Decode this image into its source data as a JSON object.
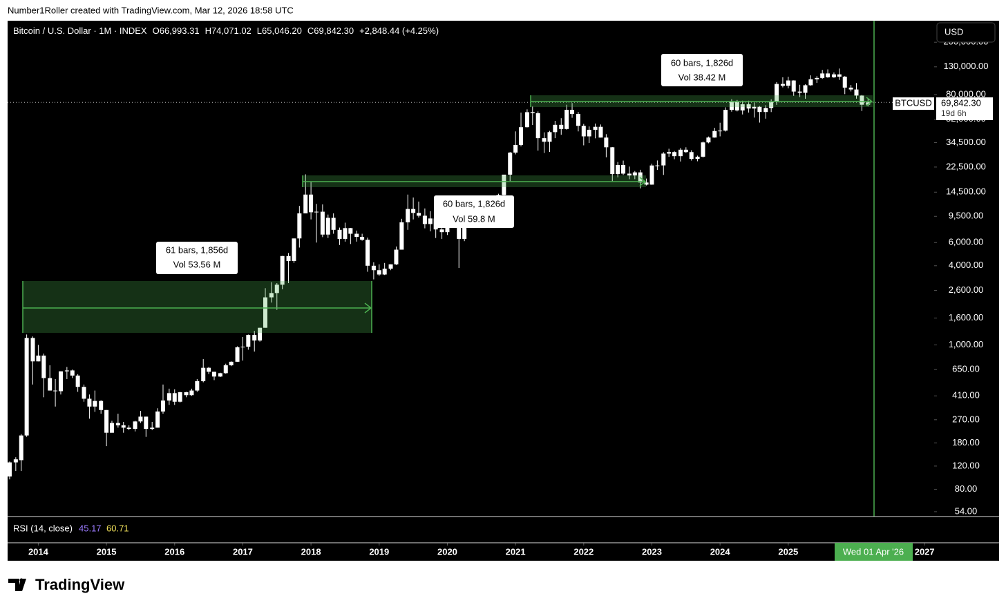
{
  "header": "Number1Roller created with TradingView.com, Mar 12, 2026 18:58 UTC",
  "legend": {
    "symbol": "Bitcoin / U.S. Dollar · 1M · INDEX",
    "open": "O66,993.31",
    "high": "H74,071.02",
    "low": "L65,046.20",
    "close": "C69,842.30",
    "change": "+2,848.44 (+4.25%)"
  },
  "currency": "USD",
  "price_tag": {
    "symbol": "BTCUSD",
    "price": "69,842.30",
    "countdown": "19d 6h"
  },
  "measures": [
    {
      "bars": "61 bars, 1,856d",
      "vol": "Vol 53.56 M"
    },
    {
      "bars": "60 bars, 1,826d",
      "vol": "Vol 59.8 M"
    },
    {
      "bars": "60 bars, 1,826d",
      "vol": "Vol 38.42 M"
    }
  ],
  "rsi": {
    "title": "RSI (14, close)",
    "value1": "45.17",
    "value2": "60.71"
  },
  "crosshair_date": "Wed 01 Apr '26",
  "footer": "TradingView",
  "chart_data": {
    "type": "candlestick",
    "log_scale": true,
    "up_color": "#ffffff",
    "down_color": "#ffffff",
    "xlim": [
      2013.55,
      2027.14
    ],
    "xticks": [
      2014,
      2015,
      2016,
      2017,
      2018,
      2019,
      2020,
      2021,
      2022,
      2023,
      2024,
      2025,
      2027
    ],
    "ylim": [
      49.6,
      291500
    ],
    "yticks": [
      {
        "value": 54,
        "label": "54.00"
      },
      {
        "value": 80,
        "label": "80.00"
      },
      {
        "value": 120,
        "label": "120.00"
      },
      {
        "value": 180,
        "label": "180.00"
      },
      {
        "value": 270,
        "label": "270.00"
      },
      {
        "value": 410,
        "label": "410.00"
      },
      {
        "value": 650,
        "label": "650.00"
      },
      {
        "value": 1000,
        "label": "1,000.00"
      },
      {
        "value": 1600,
        "label": "1,600.00"
      },
      {
        "value": 2600,
        "label": "2,600.00"
      },
      {
        "value": 4000,
        "label": "4,000.00"
      },
      {
        "value": 6000,
        "label": "6,000.00"
      },
      {
        "value": 9500,
        "label": "9,500.00"
      },
      {
        "value": 14500,
        "label": "14,500.00"
      },
      {
        "value": 22500,
        "label": "22,500.00"
      },
      {
        "value": 34500,
        "label": "34,500.00"
      },
      {
        "value": 52000,
        "label": "52,000.00"
      },
      {
        "value": 80000,
        "label": "80,000.00"
      },
      {
        "value": 130000,
        "label": "130,000.00"
      },
      {
        "value": 200000,
        "label": "200,000.00"
      }
    ],
    "x": [
      2013.58,
      2013.67,
      2013.75,
      2013.83,
      2013.92,
      2014,
      2014.08,
      2014.17,
      2014.25,
      2014.33,
      2014.42,
      2014.5,
      2014.58,
      2014.67,
      2014.75,
      2014.83,
      2014.92,
      2015,
      2015.08,
      2015.17,
      2015.25,
      2015.33,
      2015.42,
      2015.5,
      2015.58,
      2015.67,
      2015.75,
      2015.83,
      2015.92,
      2016,
      2016.08,
      2016.17,
      2016.25,
      2016.33,
      2016.42,
      2016.5,
      2016.58,
      2016.67,
      2016.75,
      2016.83,
      2016.92,
      2017,
      2017.08,
      2017.17,
      2017.25,
      2017.33,
      2017.42,
      2017.5,
      2017.58,
      2017.67,
      2017.75,
      2017.83,
      2017.92,
      2018,
      2018.08,
      2018.17,
      2018.25,
      2018.33,
      2018.42,
      2018.5,
      2018.58,
      2018.67,
      2018.75,
      2018.83,
      2018.92,
      2019,
      2019.08,
      2019.17,
      2019.25,
      2019.33,
      2019.42,
      2019.5,
      2019.58,
      2019.67,
      2019.75,
      2019.83,
      2019.92,
      2020,
      2020.08,
      2020.17,
      2020.25,
      2020.33,
      2020.42,
      2020.5,
      2020.58,
      2020.67,
      2020.75,
      2020.83,
      2020.92,
      2021,
      2021.08,
      2021.17,
      2021.25,
      2021.33,
      2021.42,
      2021.5,
      2021.58,
      2021.67,
      2021.75,
      2021.83,
      2021.92,
      2022,
      2022.08,
      2022.17,
      2022.25,
      2022.33,
      2022.42,
      2022.5,
      2022.58,
      2022.67,
      2022.75,
      2022.83,
      2022.92,
      2023,
      2023.08,
      2023.17,
      2023.25,
      2023.33,
      2023.42,
      2023.5,
      2023.58,
      2023.67,
      2023.75,
      2023.83,
      2023.92,
      2024,
      2024.08,
      2024.17,
      2024.25,
      2024.33,
      2024.42,
      2024.5,
      2024.58,
      2024.67,
      2024.75,
      2024.83,
      2024.92,
      2025,
      2025.08,
      2025.17,
      2025.25,
      2025.33,
      2025.42,
      2025.5,
      2025.58,
      2025.67,
      2025.75,
      2025.83,
      2025.92,
      2026,
      2026.08,
      2026.17
    ],
    "ohlc": [
      [
        100,
        130,
        95,
        128
      ],
      [
        128,
        140,
        110,
        135
      ],
      [
        133,
        210,
        110,
        205
      ],
      [
        205,
        1200,
        200,
        1130
      ],
      [
        1130,
        1160,
        500,
        750
      ],
      [
        750,
        1000,
        750,
        830
      ],
      [
        830,
        860,
        400,
        560
      ],
      [
        560,
        700,
        450,
        450
      ],
      [
        450,
        550,
        340,
        445
      ],
      [
        445,
        630,
        420,
        630
      ],
      [
        630,
        680,
        550,
        640
      ],
      [
        640,
        650,
        560,
        585
      ],
      [
        585,
        600,
        440,
        480
      ],
      [
        480,
        500,
        370,
        390
      ],
      [
        390,
        420,
        275,
        340
      ],
      [
        340,
        450,
        310,
        375
      ],
      [
        375,
        380,
        300,
        320
      ],
      [
        320,
        320,
        170,
        215
      ],
      [
        215,
        265,
        215,
        255
      ],
      [
        255,
        300,
        235,
        245
      ],
      [
        245,
        260,
        215,
        235
      ],
      [
        235,
        245,
        225,
        230
      ],
      [
        230,
        265,
        220,
        262
      ],
      [
        262,
        315,
        255,
        285
      ],
      [
        285,
        285,
        200,
        230
      ],
      [
        230,
        260,
        225,
        235
      ],
      [
        235,
        330,
        235,
        312
      ],
      [
        312,
        500,
        300,
        378
      ],
      [
        378,
        465,
        350,
        430
      ],
      [
        430,
        460,
        350,
        370
      ],
      [
        370,
        440,
        365,
        437
      ],
      [
        437,
        440,
        400,
        415
      ],
      [
        415,
        465,
        410,
        450
      ],
      [
        450,
        550,
        440,
        530
      ],
      [
        530,
        780,
        520,
        670
      ],
      [
        670,
        680,
        600,
        625
      ],
      [
        625,
        625,
        540,
        575
      ],
      [
        575,
        615,
        570,
        610
      ],
      [
        610,
        720,
        605,
        700
      ],
      [
        700,
        750,
        690,
        745
      ],
      [
        745,
        975,
        745,
        960
      ],
      [
        960,
        1150,
        760,
        970
      ],
      [
        970,
        1200,
        920,
        1190
      ],
      [
        1190,
        1280,
        890,
        1080
      ],
      [
        1080,
        1350,
        1060,
        1350
      ],
      [
        1350,
        2700,
        1350,
        2300
      ],
      [
        2300,
        3000,
        2100,
        2480
      ],
      [
        2480,
        2950,
        1850,
        2870
      ],
      [
        2870,
        4750,
        2650,
        4740
      ],
      [
        4740,
        5000,
        2950,
        4340
      ],
      [
        4340,
        6450,
        4200,
        6450
      ],
      [
        6450,
        11400,
        5500,
        10000
      ],
      [
        10000,
        19800,
        10000,
        13900
      ],
      [
        13900,
        17300,
        9000,
        10200
      ],
      [
        10200,
        11800,
        6000,
        10300
      ],
      [
        10300,
        11700,
        6600,
        6900
      ],
      [
        6900,
        9800,
        6500,
        9250
      ],
      [
        9250,
        10000,
        7000,
        7500
      ],
      [
        7500,
        7800,
        5750,
        6400
      ],
      [
        6400,
        8500,
        6100,
        7730
      ],
      [
        7730,
        7750,
        5850,
        7000
      ],
      [
        7000,
        7400,
        6100,
        6630
      ],
      [
        6630,
        7000,
        6200,
        6300
      ],
      [
        6300,
        6550,
        3600,
        4000
      ],
      [
        4000,
        4250,
        3150,
        3700
      ],
      [
        3700,
        4100,
        3350,
        3430
      ],
      [
        3430,
        4200,
        3400,
        3800
      ],
      [
        3800,
        4100,
        3700,
        4100
      ],
      [
        4100,
        5600,
        4050,
        5300
      ],
      [
        5300,
        9100,
        5300,
        8550
      ],
      [
        8550,
        13900,
        7500,
        10800
      ],
      [
        10800,
        13200,
        9000,
        10080
      ],
      [
        10080,
        12300,
        9300,
        9600
      ],
      [
        9600,
        10900,
        7700,
        8300
      ],
      [
        8300,
        10400,
        7300,
        9150
      ],
      [
        9150,
        9500,
        6500,
        7550
      ],
      [
        7550,
        7750,
        6400,
        7200
      ],
      [
        7200,
        9600,
        6850,
        9350
      ],
      [
        9350,
        10500,
        8450,
        8550
      ],
      [
        8550,
        9200,
        3850,
        6400
      ],
      [
        6400,
        9500,
        6150,
        8630
      ],
      [
        8630,
        10080,
        8100,
        9450
      ],
      [
        9450,
        10400,
        8900,
        9140
      ],
      [
        9140,
        11450,
        8950,
        11350
      ],
      [
        11350,
        12480,
        10600,
        11650
      ],
      [
        11650,
        12100,
        9850,
        10780
      ],
      [
        10780,
        14100,
        10370,
        13800
      ],
      [
        13800,
        19500,
        13200,
        19700
      ],
      [
        19700,
        29300,
        17600,
        28990
      ],
      [
        28990,
        42000,
        28100,
        33100
      ],
      [
        33100,
        58350,
        32300,
        45200
      ],
      [
        45200,
        61800,
        45000,
        58800
      ],
      [
        58800,
        64900,
        47000,
        57750
      ],
      [
        57750,
        59600,
        30000,
        37300
      ],
      [
        37300,
        41300,
        28800,
        35040
      ],
      [
        35040,
        42400,
        29300,
        41460
      ],
      [
        41460,
        50500,
        37300,
        47100
      ],
      [
        47100,
        52900,
        39600,
        43800
      ],
      [
        43800,
        67000,
        43300,
        61300
      ],
      [
        61300,
        69000,
        53300,
        57000
      ],
      [
        57000,
        59000,
        42000,
        46300
      ],
      [
        46300,
        47900,
        32900,
        38500
      ],
      [
        38500,
        45800,
        34300,
        43200
      ],
      [
        43200,
        48200,
        37200,
        45500
      ],
      [
        45500,
        47400,
        37700,
        37700
      ],
      [
        37700,
        40000,
        26700,
        31800
      ],
      [
        31800,
        31900,
        17600,
        19900
      ],
      [
        19900,
        24600,
        18800,
        23300
      ],
      [
        23300,
        25200,
        19600,
        20050
      ],
      [
        20050,
        22700,
        18200,
        19430
      ],
      [
        19430,
        21000,
        18200,
        20500
      ],
      [
        20500,
        21450,
        15500,
        17160
      ],
      [
        17160,
        18400,
        16300,
        16540
      ],
      [
        16540,
        23900,
        16500,
        23130
      ],
      [
        23130,
        25250,
        21400,
        23150
      ],
      [
        23150,
        29200,
        19600,
        28480
      ],
      [
        28480,
        31000,
        26900,
        29250
      ],
      [
        29250,
        29800,
        25800,
        27220
      ],
      [
        27220,
        31400,
        24800,
        30480
      ],
      [
        30480,
        31800,
        28860,
        29230
      ],
      [
        29230,
        30200,
        25200,
        25940
      ],
      [
        25940,
        27500,
        24900,
        26970
      ],
      [
        26970,
        35200,
        26600,
        34640
      ],
      [
        34640,
        38400,
        34100,
        37720
      ],
      [
        37720,
        44700,
        37600,
        42280
      ],
      [
        42280,
        48900,
        38500,
        42580
      ],
      [
        42580,
        64000,
        41900,
        61200
      ],
      [
        61200,
        73800,
        59300,
        71300
      ],
      [
        71300,
        72800,
        59600,
        60650
      ],
      [
        60650,
        71900,
        56500,
        67500
      ],
      [
        67500,
        71900,
        58400,
        62700
      ],
      [
        62700,
        70000,
        53500,
        64600
      ],
      [
        64600,
        65600,
        49000,
        58970
      ],
      [
        58970,
        66500,
        52500,
        63300
      ],
      [
        63300,
        73600,
        58900,
        70200
      ],
      [
        70200,
        99600,
        66800,
        96400
      ],
      [
        96400,
        108300,
        90700,
        93400
      ],
      [
        93400,
        109300,
        89200,
        102400
      ],
      [
        102400,
        102700,
        78200,
        84350
      ],
      [
        84350,
        95000,
        76600,
        82550
      ],
      [
        82550,
        95700,
        74400,
        94200
      ],
      [
        94200,
        112000,
        93400,
        104600
      ],
      [
        104600,
        110500,
        98200,
        107100
      ],
      [
        107100,
        123200,
        105300,
        115800
      ],
      [
        115800,
        124400,
        107300,
        108200
      ],
      [
        108200,
        117900,
        107300,
        114000
      ],
      [
        114000,
        126200,
        103500,
        109500
      ],
      [
        109500,
        110600,
        80600,
        90400
      ],
      [
        90400,
        94600,
        84500,
        87500
      ],
      [
        87500,
        97900,
        74500,
        78600
      ],
      [
        78600,
        79400,
        60000,
        66990
      ],
      [
        66993.31,
        74071.02,
        65046.2,
        69842.3
      ]
    ]
  }
}
